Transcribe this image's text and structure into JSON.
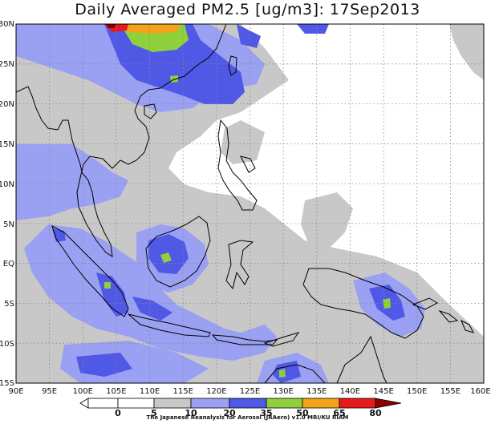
{
  "title": "Daily Averaged PM2.5 [ug/m3]: 17Sep2013",
  "map": {
    "lon_range": [
      90,
      160
    ],
    "lat_range": [
      -15,
      30
    ],
    "lon_ticks": [
      "90E",
      "95E",
      "100E",
      "105E",
      "110E",
      "115E",
      "120E",
      "125E",
      "130E",
      "135E",
      "140E",
      "145E",
      "150E",
      "155E",
      "160E"
    ],
    "lat_ticks": [
      "30N",
      "25N",
      "20N",
      "15N",
      "10N",
      "5N",
      "EQ",
      "5S",
      "10S",
      "15S"
    ],
    "gridlines": "dotted"
  },
  "colorbar": {
    "labels": [
      "0",
      "5",
      "10",
      "20",
      "35",
      "50",
      "65",
      "80"
    ],
    "colors": [
      "#ffffff",
      "#ffffff",
      "#c8c8c8",
      "#9aa0f2",
      "#5058e6",
      "#8fd13a",
      "#f4a21a",
      "#e61a1a",
      "#8c0000"
    ]
  },
  "credit": "The Japanese Reanalysis for Aerosol (JRAero) v1.0 MRI/KU RIAM"
}
